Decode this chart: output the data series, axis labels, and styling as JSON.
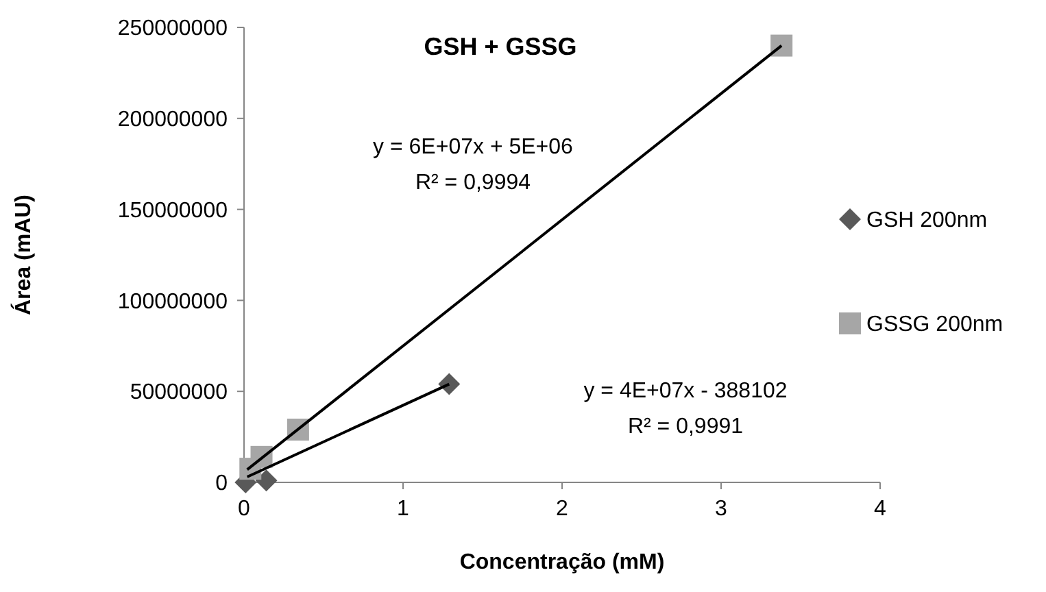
{
  "chart_data": {
    "type": "scatter",
    "title": "GSH + GSSG",
    "xlabel": "Concentração (mM)",
    "ylabel": "Área (mAU)",
    "xlim": [
      0,
      4
    ],
    "xticks": [
      0,
      1,
      2,
      3,
      4
    ],
    "ylim": [
      0,
      250000000
    ],
    "yticks": [
      0,
      50000000,
      100000000,
      150000000,
      200000000,
      250000000
    ],
    "grid": false,
    "legend": "right",
    "series": [
      {
        "name": "GSH 200nm",
        "color": "#595959",
        "marker": "diamond",
        "x": [
          0.01,
          0.14,
          1.29
        ],
        "values": [
          0,
          1000000,
          54000000
        ]
      },
      {
        "name": "GSSG 200nm",
        "color": "#a6a6a6",
        "marker": "square",
        "x": [
          0.04,
          0.11,
          0.34,
          3.38
        ],
        "values": [
          7500000,
          14000000,
          29000000,
          240000000
        ]
      },
      {
        "type": "line",
        "color": "#000000",
        "marker": "none",
        "x": [
          0.02,
          1.29
        ],
        "values": [
          3000000,
          54000000
        ]
      },
      {
        "type": "line",
        "color": "#000000",
        "marker": "none",
        "x": [
          0.02,
          3.38
        ],
        "values": [
          7000000,
          240000000
        ]
      }
    ],
    "annotations": [
      "y = 6E+07x + 5E+06",
      "R² = 0,9994",
      "y = 4E+07x - 388102",
      "R² = 0,9991"
    ]
  }
}
